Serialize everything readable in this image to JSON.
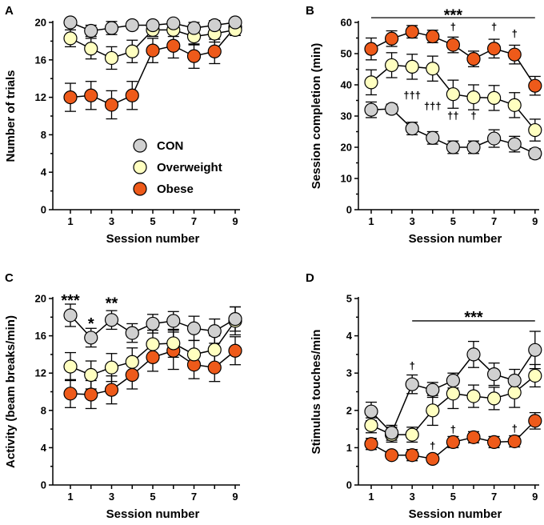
{
  "chart_data": [
    {
      "type": "line",
      "panel": "A",
      "xlabel": "Session number",
      "ylabel": "Number of trials",
      "xlim": [
        0.5,
        9
      ],
      "ylim": [
        0,
        20
      ],
      "xticks": [
        1,
        3,
        5,
        7,
        9
      ],
      "yticks": [
        0,
        4,
        8,
        12,
        16,
        20
      ],
      "x": [
        1,
        2,
        3,
        4,
        5,
        6,
        7,
        8,
        9
      ],
      "series": [
        {
          "name": "CON",
          "color": "#d0d0d0",
          "values": [
            20,
            19.1,
            19.4,
            19.7,
            19.7,
            19.9,
            19.4,
            19.7,
            20
          ],
          "errors": [
            0.4,
            0.6,
            0.7,
            0.4,
            0.4,
            0.3,
            0.6,
            0.5,
            0.3
          ]
        },
        {
          "name": "Overweight",
          "color": "#ffffc0",
          "values": [
            18.3,
            17.2,
            16.2,
            16.9,
            19.2,
            19.2,
            18.5,
            18.8,
            19.2
          ],
          "errors": [
            0.9,
            1.1,
            1.2,
            1.2,
            0.7,
            0.7,
            0.9,
            0.9,
            0.6
          ]
        },
        {
          "name": "Obese",
          "color": "#ee5a1a",
          "values": [
            12,
            12.2,
            11.2,
            12.2,
            17,
            17.5,
            16.4,
            16.9,
            19.5
          ],
          "errors": [
            1.5,
            1.5,
            1.5,
            1.5,
            1.3,
            1.3,
            1.3,
            1.3,
            0.5
          ]
        }
      ],
      "legend": {
        "placement": "center",
        "entries": [
          "CON",
          "Overweight",
          "Obese"
        ]
      },
      "annotations": []
    },
    {
      "type": "line",
      "panel": "B",
      "xlabel": "Session number",
      "ylabel": "Session completion (min)",
      "xlim": [
        0.5,
        9
      ],
      "ylim": [
        0,
        60
      ],
      "xticks": [
        1,
        3,
        5,
        7,
        9
      ],
      "yticks": [
        0,
        10,
        20,
        30,
        40,
        50,
        60
      ],
      "x": [
        1,
        2,
        3,
        4,
        5,
        6,
        7,
        8,
        9
      ],
      "series": [
        {
          "name": "CON",
          "color": "#d0d0d0",
          "values": [
            32,
            32.3,
            26,
            23,
            20,
            20,
            22.8,
            21,
            18
          ],
          "errors": [
            2.5,
            1.5,
            2,
            2,
            2,
            2,
            2.8,
            2.5,
            1.5
          ]
        },
        {
          "name": "Overweight",
          "color": "#ffffc0",
          "values": [
            40.8,
            46.3,
            45.8,
            45.2,
            37,
            36,
            35.8,
            33.5,
            25.5
          ],
          "errors": [
            4,
            4,
            4,
            4,
            4.5,
            4,
            4,
            4,
            3.5
          ]
        },
        {
          "name": "Obese",
          "color": "#ee5a1a",
          "values": [
            51.5,
            54.8,
            57,
            55.5,
            52.8,
            48.3,
            51.6,
            49.7,
            39.7
          ],
          "errors": [
            3.5,
            2.5,
            2,
            2,
            2.5,
            2.5,
            3,
            3,
            3
          ]
        }
      ],
      "annotations": [
        {
          "text": "***",
          "x": 5,
          "y": 63
        },
        {
          "text": "†",
          "x": 5,
          "y": 57.5
        },
        {
          "text": "†",
          "x": 7,
          "y": 57.5
        },
        {
          "text": "†",
          "x": 8,
          "y": 55.2
        },
        {
          "text": "†††",
          "x": 3,
          "y": 35.5
        },
        {
          "text": "†††",
          "x": 4,
          "y": 32
        },
        {
          "text": "††",
          "x": 5,
          "y": 29
        },
        {
          "text": "†",
          "x": 6,
          "y": 29
        }
      ],
      "significance_lines": [
        {
          "from": 1,
          "to": 9,
          "y": 61.5
        }
      ]
    },
    {
      "type": "line",
      "panel": "C",
      "xlabel": "Session number",
      "ylabel": "Activity (beam breaks/min)",
      "xlim": [
        0.5,
        9
      ],
      "ylim": [
        0,
        20
      ],
      "xticks": [
        1,
        3,
        5,
        7,
        9
      ],
      "yticks": [
        0,
        4,
        8,
        12,
        16,
        20
      ],
      "x": [
        1,
        2,
        3,
        4,
        5,
        6,
        7,
        8,
        9
      ],
      "series": [
        {
          "name": "CON",
          "color": "#d0d0d0",
          "values": [
            18.2,
            15.8,
            17.7,
            16.3,
            17.3,
            17.6,
            16.8,
            16.5,
            17.8
          ],
          "errors": [
            1.2,
            1,
            1,
            1,
            1,
            1,
            1.3,
            1.3,
            1.3
          ]
        },
        {
          "name": "Overweight",
          "color": "#ffffc0",
          "values": [
            12.7,
            11.8,
            12.6,
            13.2,
            15.1,
            15.2,
            14,
            14.5,
            17.6
          ],
          "errors": [
            1.5,
            1.5,
            1.5,
            1.5,
            1.5,
            1.5,
            1.5,
            1.5,
            1.5
          ]
        },
        {
          "name": "Obese",
          "color": "#ee5a1a",
          "values": [
            9.8,
            9.7,
            10.2,
            11.8,
            13.7,
            14.4,
            12.9,
            12.6,
            14.4
          ],
          "errors": [
            1.5,
            1.5,
            1.5,
            1.5,
            1.5,
            2,
            1.5,
            1.5,
            1.5
          ]
        }
      ],
      "annotations": [
        {
          "text": "***",
          "x": 1,
          "y": 20
        },
        {
          "text": "*",
          "x": 2,
          "y": 17.5
        },
        {
          "text": "**",
          "x": 3,
          "y": 19.7
        }
      ]
    },
    {
      "type": "line",
      "panel": "D",
      "xlabel": "Session number",
      "ylabel": "Stimulus touches/min",
      "xlim": [
        0.5,
        9
      ],
      "ylim": [
        0,
        5
      ],
      "xticks": [
        1,
        3,
        5,
        7,
        9
      ],
      "yticks": [
        0,
        1,
        2,
        3,
        4,
        5
      ],
      "x": [
        1,
        2,
        3,
        4,
        5,
        6,
        7,
        8,
        9
      ],
      "series": [
        {
          "name": "CON",
          "color": "#d0d0d0",
          "values": [
            1.97,
            1.4,
            2.7,
            2.55,
            2.8,
            3.5,
            2.97,
            2.8,
            3.62
          ],
          "errors": [
            0.25,
            0.2,
            0.25,
            0.2,
            0.2,
            0.35,
            0.3,
            0.3,
            0.5
          ]
        },
        {
          "name": "Overweight",
          "color": "#ffffc0",
          "values": [
            1.6,
            1.35,
            1.35,
            2,
            2.45,
            2.38,
            2.32,
            2.48,
            2.93
          ],
          "errors": [
            0.2,
            0.2,
            0.2,
            0.4,
            0.4,
            0.3,
            0.3,
            0.4,
            0.3
          ]
        },
        {
          "name": "Obese",
          "color": "#ee5a1a",
          "values": [
            1.1,
            0.8,
            0.8,
            0.7,
            1.15,
            1.28,
            1.15,
            1.17,
            1.72
          ],
          "errors": [
            0.15,
            0.1,
            0.15,
            0.1,
            0.15,
            0.15,
            0.15,
            0.15,
            0.22
          ]
        }
      ],
      "annotations": [
        {
          "text": "***",
          "x": 6,
          "y": 4.55
        },
        {
          "text": "†",
          "x": 3,
          "y": 3.1
        },
        {
          "text": "†",
          "x": 4,
          "y": 0.95
        },
        {
          "text": "†",
          "x": 5,
          "y": 1.4
        },
        {
          "text": "†",
          "x": 8,
          "y": 1.42
        }
      ],
      "significance_lines": [
        {
          "from": 3,
          "to": 9,
          "y": 4.4
        }
      ]
    }
  ]
}
